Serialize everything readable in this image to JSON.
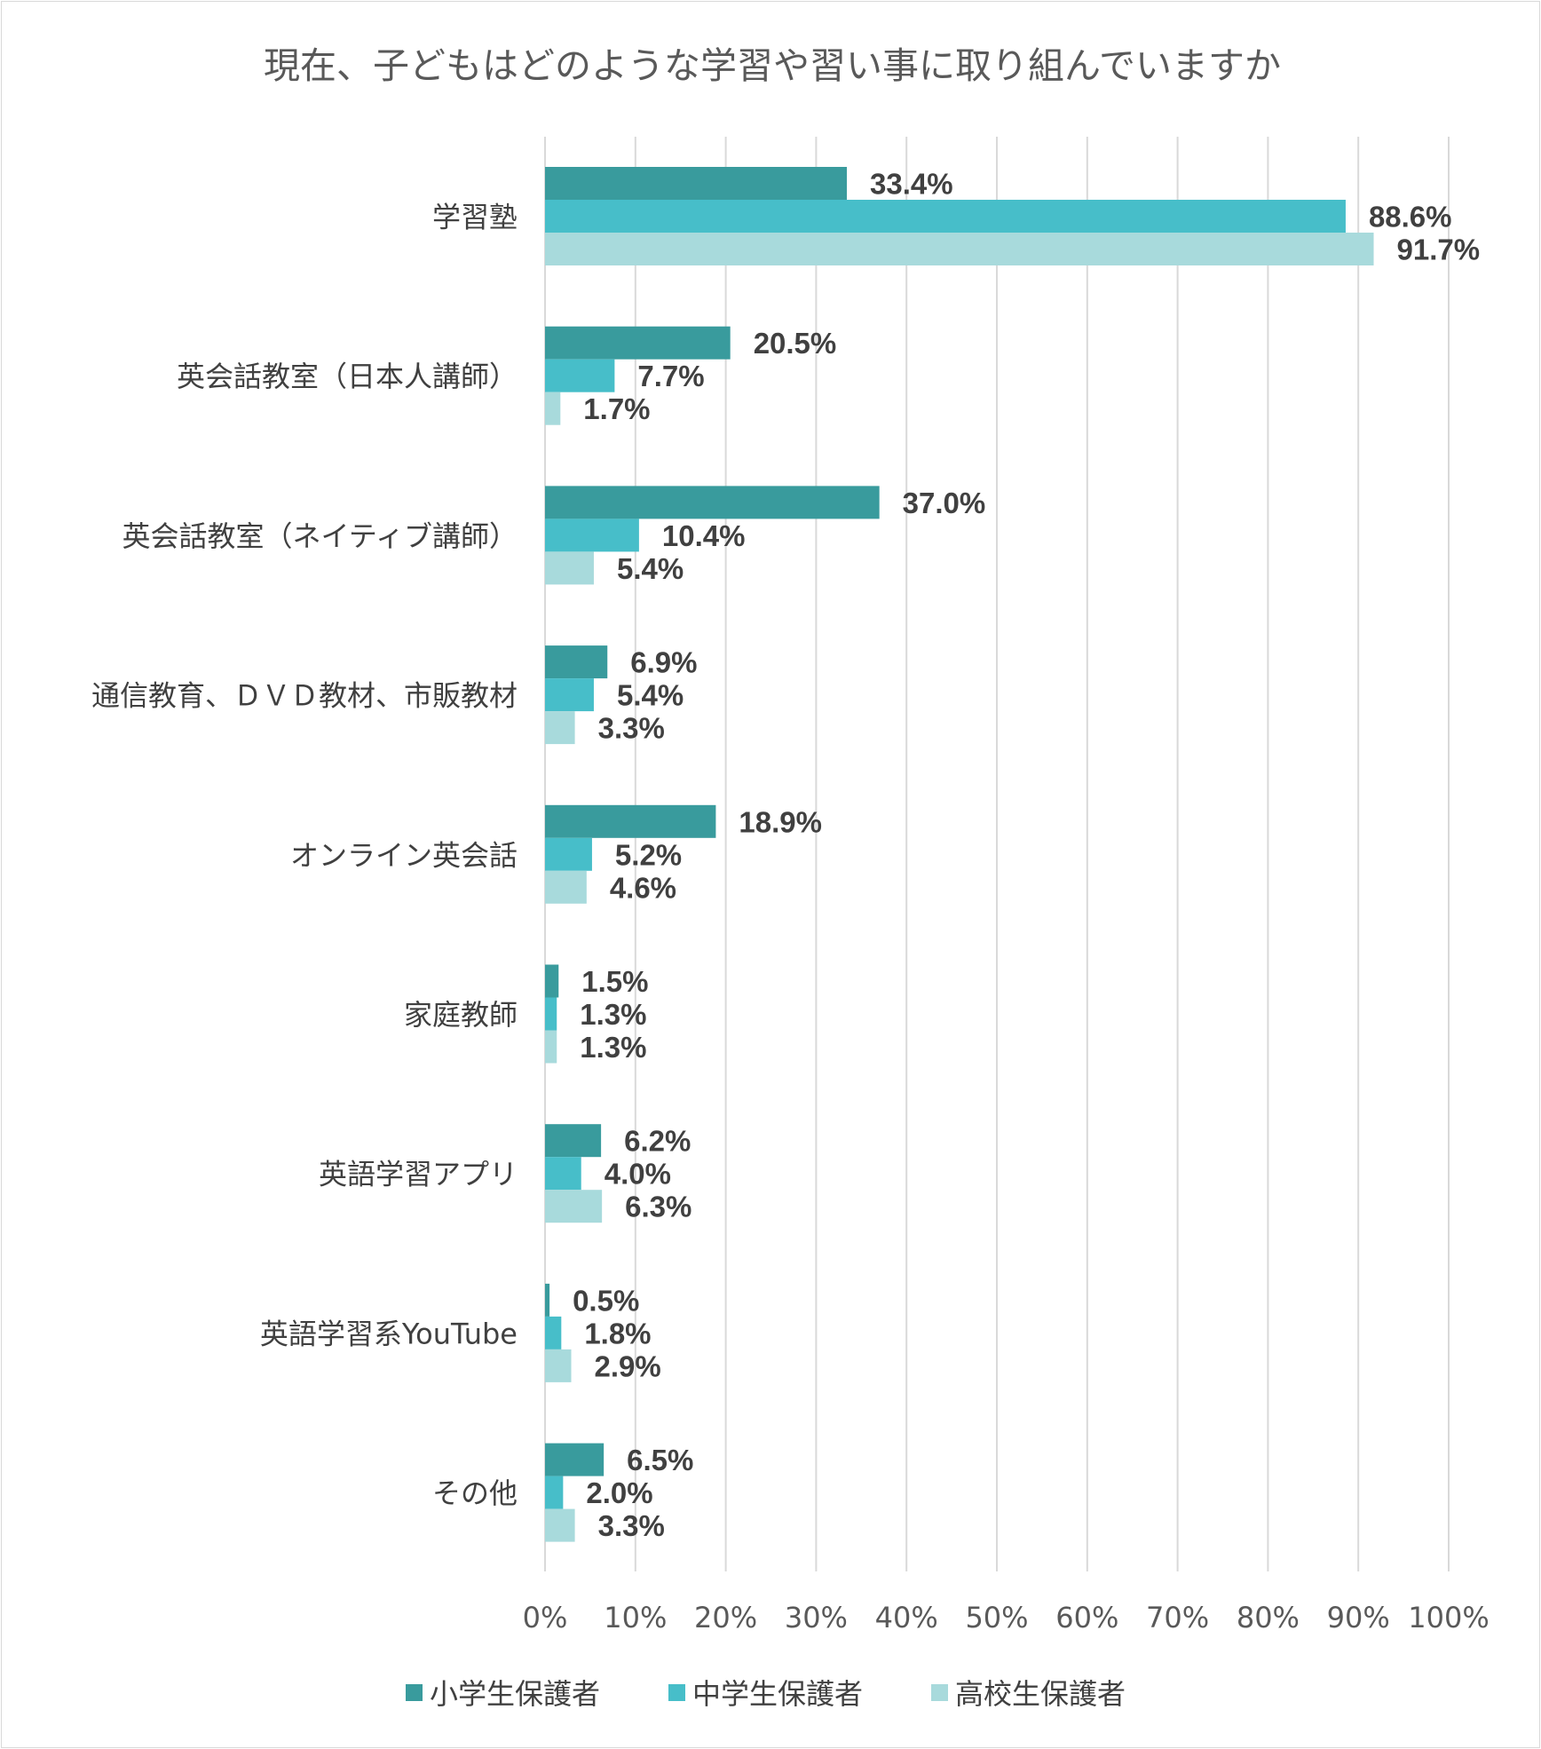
{
  "chart_data": {
    "type": "bar",
    "orientation": "horizontal",
    "title": "現在、子どもはどのような学習や習い事に取り組んでいますか",
    "categories": [
      "学習塾",
      "英会話教室（日本人講師）",
      "英会話教室（ネイティブ講師）",
      "通信教育、ＤＶＤ教材、市販教材",
      "オンライン英会話",
      "家庭教師",
      "英語学習アプリ",
      "英語学習系YouTube",
      "その他"
    ],
    "series": [
      {
        "name": "小学生保護者",
        "color": "#399b9d",
        "values": [
          33.4,
          20.5,
          37.0,
          6.9,
          18.9,
          1.5,
          6.2,
          0.5,
          6.5
        ],
        "labels": [
          "33.4%",
          "20.5%",
          "37.0%",
          "6.9%",
          "18.9%",
          "1.5%",
          "6.2%",
          "0.5%",
          "6.5%"
        ]
      },
      {
        "name": "中学生保護者",
        "color": "#47bec9",
        "values": [
          88.6,
          7.7,
          10.4,
          5.4,
          5.2,
          1.3,
          4.0,
          1.8,
          2.0
        ],
        "labels": [
          "88.6%",
          "7.7%",
          "10.4%",
          "5.4%",
          "5.2%",
          "1.3%",
          "4.0%",
          "1.8%",
          "2.0%"
        ]
      },
      {
        "name": "高校生保護者",
        "color": "#a8dadc",
        "values": [
          91.7,
          1.7,
          5.4,
          3.3,
          4.6,
          1.3,
          6.3,
          2.9,
          3.3
        ],
        "labels": [
          "91.7%",
          "1.7%",
          "5.4%",
          "3.3%",
          "4.6%",
          "1.3%",
          "6.3%",
          "2.9%",
          "3.3%"
        ]
      }
    ],
    "x_ticks": [
      "0%",
      "10%",
      "20%",
      "30%",
      "40%",
      "50%",
      "60%",
      "70%",
      "80%",
      "90%",
      "100%"
    ],
    "xlim": [
      0,
      100
    ],
    "grid": true,
    "legend_position": "bottom"
  }
}
